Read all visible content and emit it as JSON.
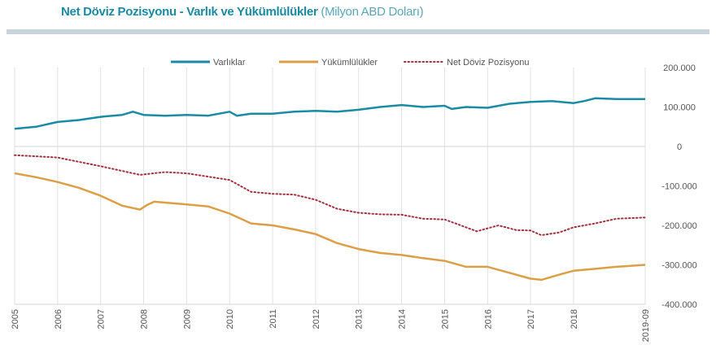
{
  "chart_data": {
    "type": "line",
    "title": "Net Döviz Pozisyonu - Varlık ve Yükümlülükler",
    "subtitle": "(Milyon ABD Doları)",
    "ylim": [
      -400000,
      200000
    ],
    "yticks": [
      200000,
      100000,
      0,
      -100000,
      -200000,
      -300000,
      -400000
    ],
    "ytick_labels": [
      "200.000",
      "100.000",
      "0",
      "-100.000",
      "-200.000",
      "-300.000",
      "-400.000"
    ],
    "xlim": [
      "2005-01",
      "2019-09"
    ],
    "xtick_labels": [
      "2005",
      "2006",
      "2007",
      "2008",
      "2009",
      "2010",
      "2011",
      "2012",
      "2013",
      "2014",
      "2015",
      "2016",
      "2017",
      "2018",
      "2019-09"
    ],
    "xticks": [
      "2005-01",
      "2006-01",
      "2007-01",
      "2008-01",
      "2009-01",
      "2010-01",
      "2011-01",
      "2012-01",
      "2013-01",
      "2014-01",
      "2015-01",
      "2016-01",
      "2017-01",
      "2018-01",
      "2019-09"
    ],
    "grid": "vertical",
    "legend": "top",
    "series": [
      {
        "name": "Varlıklar",
        "color": "#1b8ba5",
        "style": "solid",
        "x": [
          "2005-01",
          "2005-07",
          "2006-01",
          "2006-07",
          "2007-01",
          "2007-07",
          "2007-10",
          "2008-01",
          "2008-07",
          "2009-01",
          "2009-07",
          "2010-01",
          "2010-03",
          "2010-07",
          "2011-01",
          "2011-07",
          "2012-01",
          "2012-07",
          "2013-01",
          "2013-07",
          "2014-01",
          "2014-07",
          "2015-01",
          "2015-03",
          "2015-07",
          "2016-01",
          "2016-07",
          "2017-01",
          "2017-07",
          "2018-01",
          "2018-04",
          "2018-07",
          "2019-01",
          "2019-09"
        ],
        "values": [
          45000,
          50000,
          62000,
          67000,
          75000,
          80000,
          88000,
          80000,
          78000,
          80000,
          78000,
          88000,
          78000,
          83000,
          83000,
          88000,
          90000,
          88000,
          93000,
          100000,
          105000,
          100000,
          103000,
          95000,
          100000,
          98000,
          108000,
          113000,
          115000,
          110000,
          115000,
          122000,
          120000,
          120000
        ]
      },
      {
        "name": "Yükümlülükler",
        "color": "#dc9f47",
        "style": "solid",
        "x": [
          "2005-01",
          "2005-07",
          "2006-01",
          "2006-07",
          "2007-01",
          "2007-07",
          "2007-12",
          "2008-02",
          "2008-04",
          "2009-01",
          "2009-07",
          "2010-01",
          "2010-07",
          "2011-01",
          "2011-07",
          "2012-01",
          "2012-07",
          "2013-01",
          "2013-07",
          "2014-01",
          "2014-07",
          "2015-01",
          "2015-07",
          "2016-01",
          "2016-07",
          "2017-01",
          "2017-04",
          "2017-09",
          "2018-01",
          "2018-07",
          "2019-01",
          "2019-09"
        ],
        "values": [
          -68000,
          -78000,
          -90000,
          -105000,
          -125000,
          -150000,
          -160000,
          -148000,
          -140000,
          -147000,
          -152000,
          -170000,
          -195000,
          -200000,
          -210000,
          -222000,
          -245000,
          -260000,
          -270000,
          -275000,
          -283000,
          -290000,
          -305000,
          -305000,
          -320000,
          -335000,
          -338000,
          -325000,
          -315000,
          -310000,
          -305000,
          -300000
        ]
      },
      {
        "name": "Net Döviz Pozisyonu",
        "color": "#a3303f",
        "style": "dotted",
        "x": [
          "2005-01",
          "2006-01",
          "2007-01",
          "2007-12",
          "2008-07",
          "2009-01",
          "2010-01",
          "2010-07",
          "2011-01",
          "2011-07",
          "2012-01",
          "2012-07",
          "2013-01",
          "2013-07",
          "2014-01",
          "2014-07",
          "2015-01",
          "2015-07",
          "2015-10",
          "2016-04",
          "2016-09",
          "2017-01",
          "2017-04",
          "2017-09",
          "2018-01",
          "2018-07",
          "2019-01",
          "2019-09"
        ],
        "values": [
          -22000,
          -28000,
          -50000,
          -72000,
          -65000,
          -68000,
          -85000,
          -115000,
          -120000,
          -122000,
          -135000,
          -158000,
          -168000,
          -172000,
          -173000,
          -183000,
          -185000,
          -205000,
          -215000,
          -200000,
          -212000,
          -213000,
          -225000,
          -218000,
          -205000,
          -195000,
          -183000,
          -180000
        ]
      }
    ]
  }
}
